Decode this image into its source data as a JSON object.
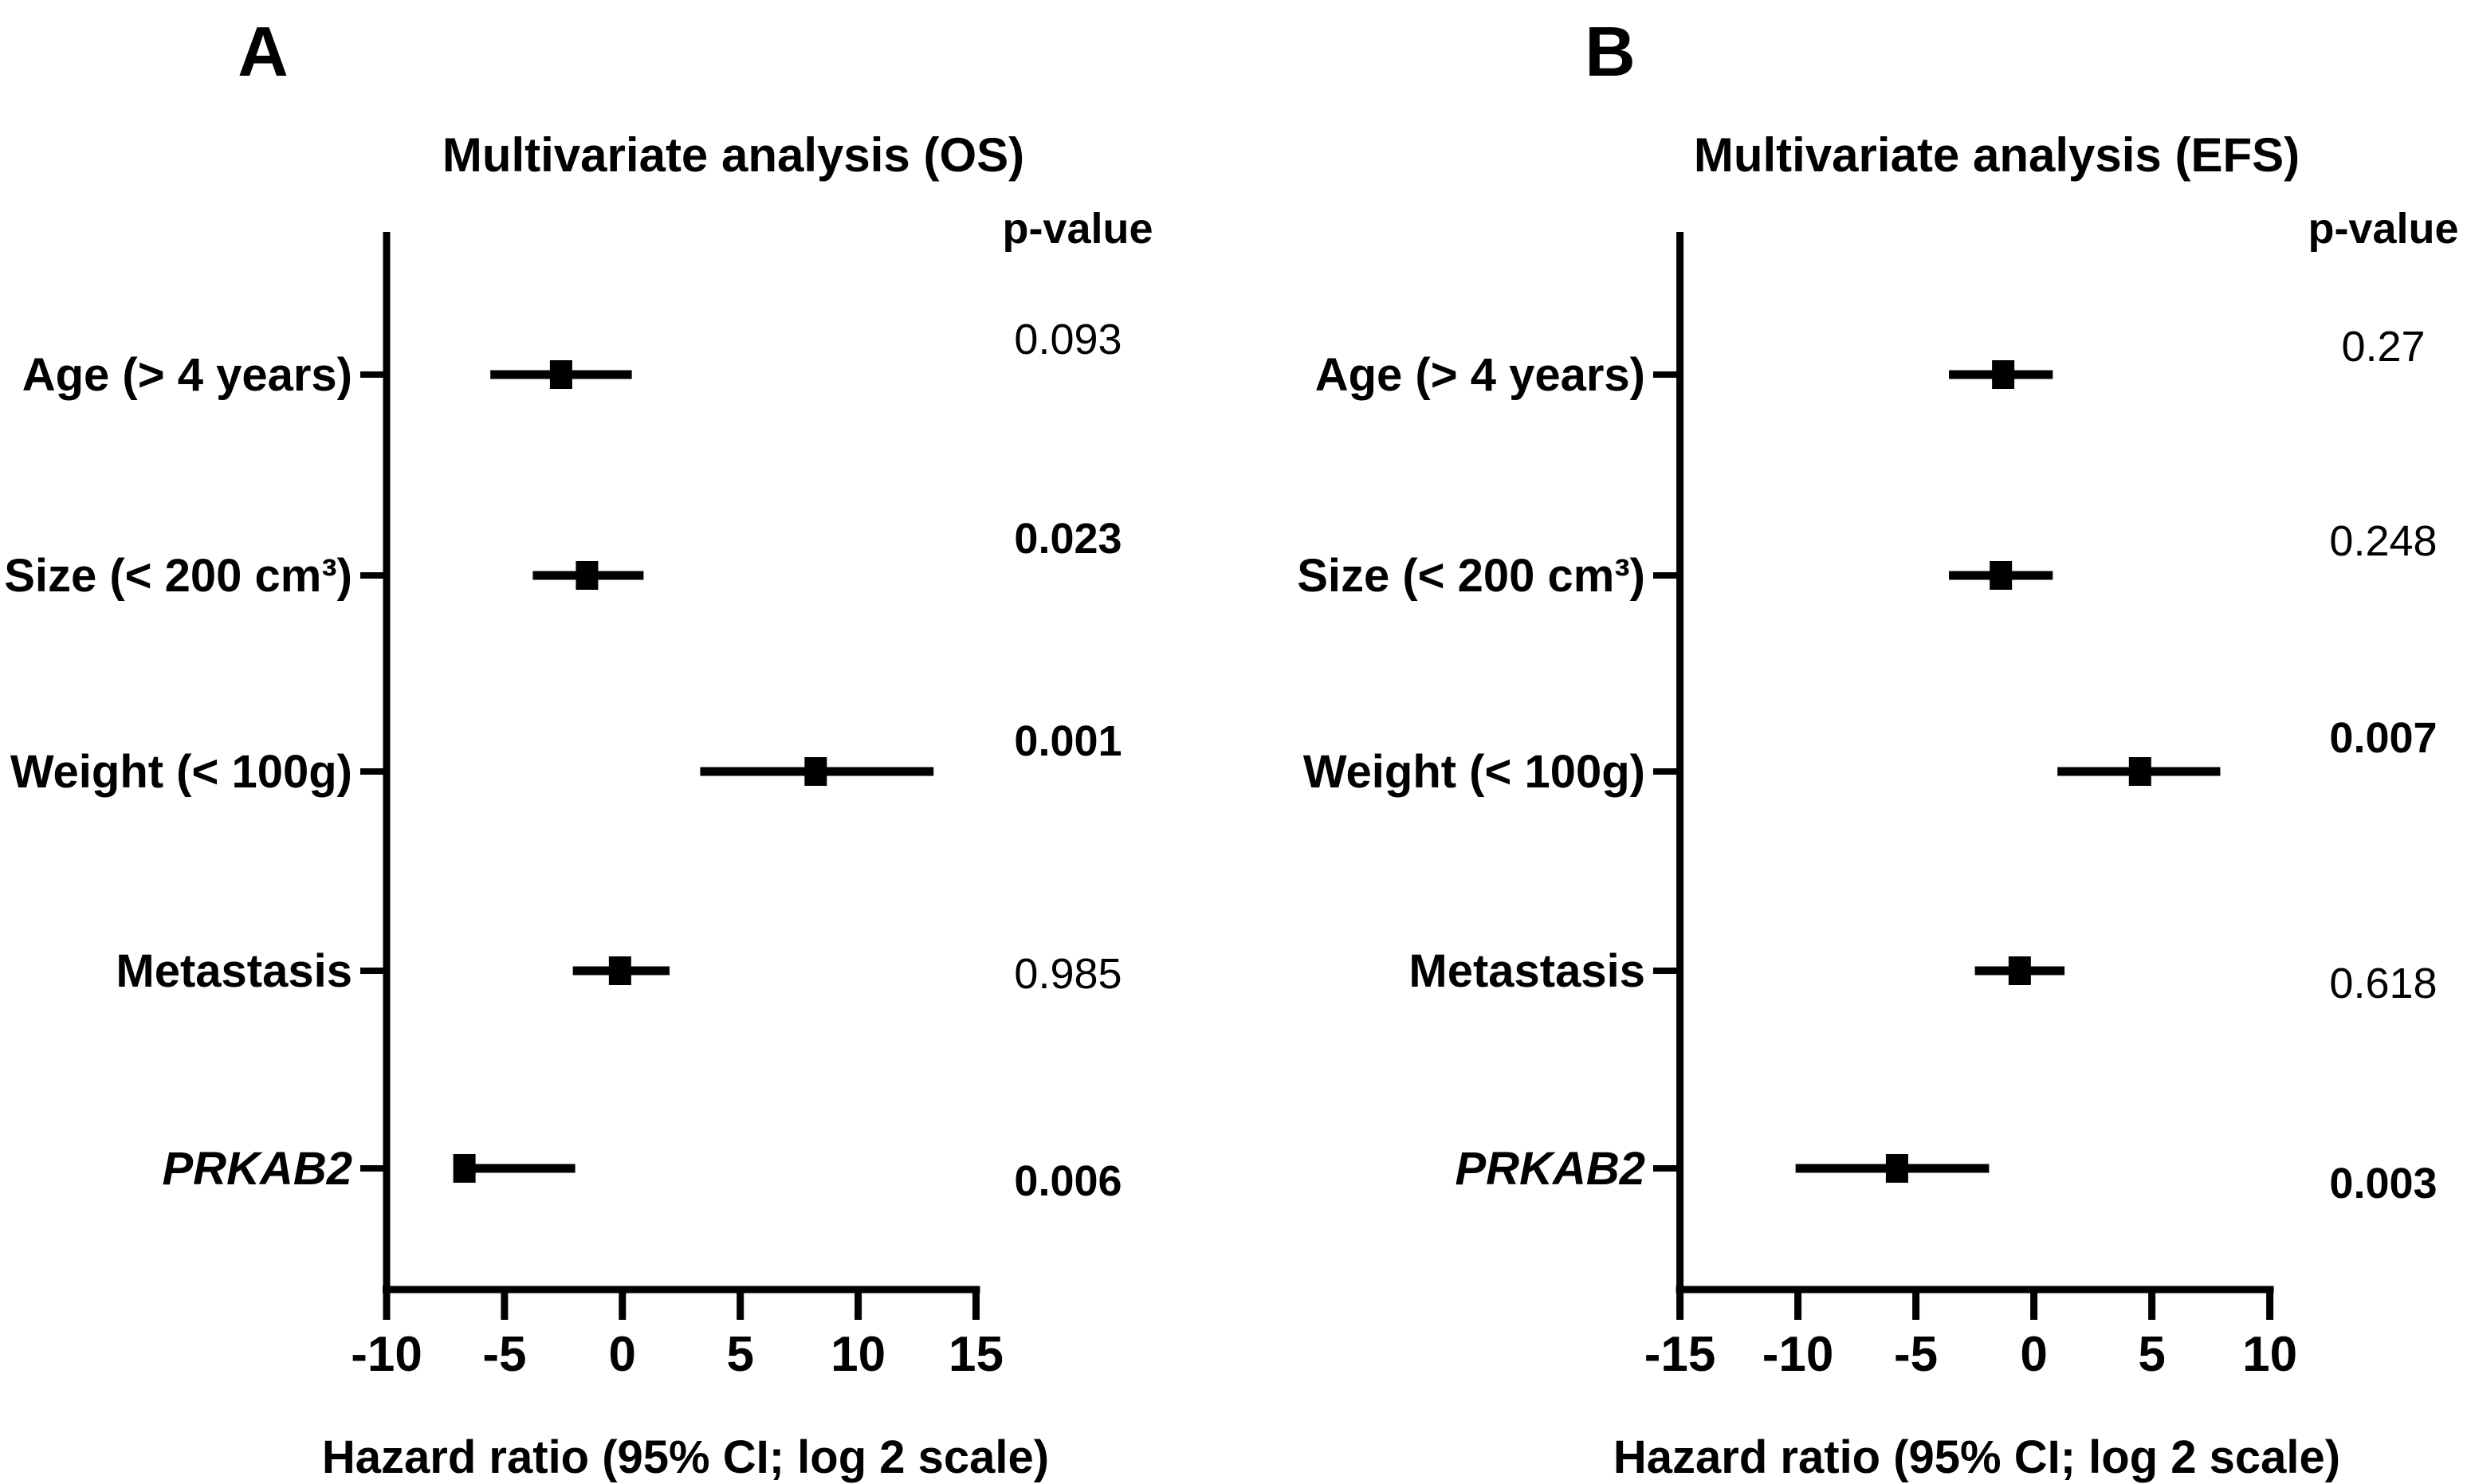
{
  "figure_background": "#ffffff",
  "ink_color": "#000000",
  "chart_data": [
    {
      "type": "forest",
      "panel_letter": "A",
      "title": "Multivariate analysis (OS)",
      "p_value_header": "p-value",
      "xlabel": "Hazard ratio (95% CI; log 2 scale)",
      "x_ticks": [
        -10,
        -5,
        0,
        5,
        10,
        15
      ],
      "x_range": [
        -10,
        15
      ],
      "grid": "off",
      "legend": "none",
      "rows": [
        {
          "label": "Age (> 4 years)",
          "italic": false,
          "center": -2.6,
          "ci_low": -5.6,
          "ci_high": 0.4,
          "p_value": "0.093",
          "p_bold": false,
          "p_dy": -26
        },
        {
          "label": "Size (< 200 cm³)",
          "italic": false,
          "center": -1.5,
          "ci_low": -3.8,
          "ci_high": 0.9,
          "p_value": "0.023",
          "p_bold": true,
          "p_dy": -28
        },
        {
          "label": "Weight (< 100g)",
          "italic": false,
          "center": 8.2,
          "ci_low": 3.3,
          "ci_high": 13.2,
          "p_value": "0.001",
          "p_bold": true,
          "p_dy": -20
        },
        {
          "label": "Metastasis",
          "italic": false,
          "center": -0.1,
          "ci_low": -2.1,
          "ci_high": 2.0,
          "p_value": "0.985",
          "p_bold": false,
          "p_dy": 22
        },
        {
          "label": "PRKAB2",
          "italic": true,
          "center": -6.7,
          "ci_low": -7.1,
          "ci_high": -2.0,
          "p_value": "0.006",
          "p_bold": true,
          "p_dy": 34
        }
      ]
    },
    {
      "type": "forest",
      "panel_letter": "B",
      "title": "Multivariate analysis (EFS)",
      "p_value_header": "p-value",
      "xlabel": "Hazard ratio (95% CI; log 2 scale)",
      "x_ticks": [
        -15,
        -10,
        -5,
        0,
        5,
        10
      ],
      "x_range": [
        -15,
        10
      ],
      "grid": "off",
      "legend": "none",
      "rows": [
        {
          "label": "Age (> 4 years)",
          "italic": false,
          "center": -1.3,
          "ci_low": -3.6,
          "ci_high": 0.8,
          "p_value": "0.27",
          "p_bold": false,
          "p_dy": -17
        },
        {
          "label": "Size (< 200 cm³)",
          "italic": false,
          "center": -1.4,
          "ci_low": -3.6,
          "ci_high": 0.8,
          "p_value": "0.248",
          "p_bold": false,
          "p_dy": -25
        },
        {
          "label": "Weight (< 100g)",
          "italic": false,
          "center": 4.5,
          "ci_low": 1.0,
          "ci_high": 7.9,
          "p_value": "0.007",
          "p_bold": true,
          "p_dy": -24
        },
        {
          "label": "Metastasis",
          "italic": false,
          "center": -0.6,
          "ci_low": -2.5,
          "ci_high": 1.3,
          "p_value": "0.618",
          "p_bold": false,
          "p_dy": 34
        },
        {
          "label": "PRKAB2",
          "italic": true,
          "center": -5.8,
          "ci_low": -10.1,
          "ci_high": -1.9,
          "p_value": "0.003",
          "p_bold": true,
          "p_dy": 37
        }
      ]
    }
  ]
}
